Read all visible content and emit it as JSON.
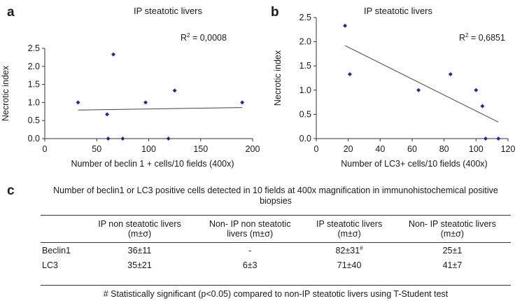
{
  "panels": {
    "a": "a",
    "b": "b",
    "c": "c"
  },
  "chart_data": [
    {
      "panel": "a",
      "type": "scatter",
      "title": "IP steatotic livers",
      "xlabel": "Number of beclin 1 + cells/10 fields (400x)",
      "ylabel": "Necrotic index",
      "xlim": [
        0,
        200
      ],
      "ylim": [
        0,
        2.5
      ],
      "xticks": [
        0,
        50,
        100,
        150,
        200
      ],
      "yticks": [
        0.0,
        0.5,
        1.0,
        1.5,
        2.0,
        2.5
      ],
      "xtick_labels": [
        "0",
        "50",
        "100",
        "150",
        "200"
      ],
      "ytick_labels": [
        "0.0",
        "0.5",
        "1.0",
        "1.5",
        "2.0",
        "2.5"
      ],
      "x": [
        32,
        60,
        61,
        66,
        75,
        97,
        119,
        125,
        190
      ],
      "y": [
        1.0,
        0.67,
        0.0,
        2.33,
        0.0,
        1.0,
        0.0,
        1.33,
        1.0
      ],
      "trendline": {
        "x": [
          32,
          190
        ],
        "y": [
          0.79,
          0.86
        ]
      },
      "annotation": {
        "label": "R",
        "sup": "2",
        "value": " = 0,0008"
      },
      "marker_color": "#2b2a86",
      "grid": false
    },
    {
      "panel": "b",
      "type": "scatter",
      "title": "IP steatotic livers",
      "xlabel": "Number of LC3+ cells/10 fields (400x)",
      "ylabel": "Necrotic index",
      "xlim": [
        0,
        120
      ],
      "ylim": [
        0,
        2.5
      ],
      "xticks": [
        0,
        20,
        40,
        60,
        80,
        100,
        120
      ],
      "yticks": [
        0.0,
        0.5,
        1.0,
        1.5,
        2.0,
        2.5
      ],
      "xtick_labels": [
        "0",
        "20",
        "40",
        "60",
        "80",
        "100",
        "120"
      ],
      "ytick_labels": [
        "0.0",
        "0.5",
        "1.0",
        "1.5",
        "2.0",
        "2.5"
      ],
      "x": [
        18,
        21,
        64,
        84,
        100,
        104,
        106,
        114
      ],
      "y": [
        2.33,
        1.33,
        1.0,
        1.33,
        1.0,
        0.67,
        0.0,
        0.0
      ],
      "trendline": {
        "x": [
          18,
          114
        ],
        "y": [
          1.92,
          0.34
        ]
      },
      "annotation": {
        "label": "R",
        "sup": "2",
        "value": " = 0,6851"
      },
      "marker_color": "#2b2a86",
      "grid": false
    }
  ],
  "table": {
    "caption": "Number of beclin1 or LC3 positive cells detected in 10 fields at 400x magnification in immunohistochemical positive biopsies",
    "headers": [
      {
        "line1": "",
        "line2": ""
      },
      {
        "line1": "IP non steatotic livers",
        "line2": "(m±σ)"
      },
      {
        "line1": "Non- IP non steatotic",
        "line2": "livers (m±σ)"
      },
      {
        "line1": "IP steatotic livers",
        "line2": "(m±σ)"
      },
      {
        "line1": "Non- IP steatotic livers",
        "line2": "(m±σ)"
      }
    ],
    "rows": [
      {
        "label": "Beclin1",
        "c1": "36±11",
        "c2": "-",
        "c3": "82±31",
        "c3_sup": "#",
        "c4": "25±1"
      },
      {
        "label": "LC3",
        "c1": "35±21",
        "c2": "6±3",
        "c3": "71±40",
        "c3_sup": "",
        "c4": "41±7"
      }
    ],
    "footnote": "# Statistically significant (p<0.05) compared to non-IP steatotic livers using T-Student test"
  }
}
